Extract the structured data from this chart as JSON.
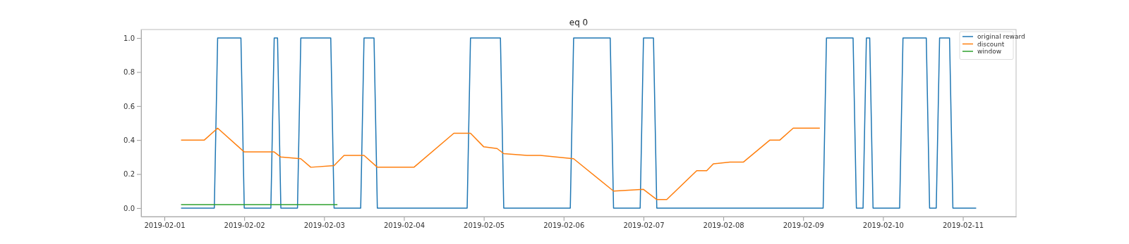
{
  "chart_data": {
    "type": "line",
    "title": "eq 0",
    "legend": "top right",
    "grid": false,
    "xlim": [
      "2019-01-31T17:00",
      "2019-02-11T16:00"
    ],
    "xticks": [
      "2019-02-01",
      "2019-02-02",
      "2019-02-03",
      "2019-02-04",
      "2019-02-05",
      "2019-02-06",
      "2019-02-07",
      "2019-02-08",
      "2019-02-09",
      "2019-02-10",
      "2019-02-11"
    ],
    "ylim": [
      -0.05,
      1.05
    ],
    "yticks": [
      {
        "value": 0,
        "label": "0.0"
      },
      {
        "value": 0.2,
        "label": "0.2"
      },
      {
        "value": 0.4,
        "label": "0.4"
      },
      {
        "value": 0.6,
        "label": "0.6"
      },
      {
        "value": 0.8,
        "label": "0.8"
      },
      {
        "value": 1,
        "label": "1.0"
      }
    ],
    "series": [
      {
        "name": "original reward",
        "color": "#1f77b4",
        "x": [
          "2019-02-01T05:00",
          "2019-02-01T15:00",
          "2019-02-01T16:00",
          "2019-02-01T23:00",
          "2019-02-02T00:00",
          "2019-02-02T08:00",
          "2019-02-02T09:00",
          "2019-02-02T10:00",
          "2019-02-02T11:00",
          "2019-02-02T16:00",
          "2019-02-02T17:00",
          "2019-02-03T02:00",
          "2019-02-03T03:00",
          "2019-02-03T11:00",
          "2019-02-03T12:00",
          "2019-02-03T15:00",
          "2019-02-03T16:00",
          "2019-02-04T19:00",
          "2019-02-04T20:00",
          "2019-02-05T05:00",
          "2019-02-05T06:00",
          "2019-02-06T02:00",
          "2019-02-06T03:00",
          "2019-02-06T14:00",
          "2019-02-06T15:00",
          "2019-02-06T23:00",
          "2019-02-07T00:00",
          "2019-02-07T03:00",
          "2019-02-07T04:00",
          "2019-02-09T06:00",
          "2019-02-09T07:00",
          "2019-02-09T15:00",
          "2019-02-09T16:00",
          "2019-02-09T18:00",
          "2019-02-09T19:00",
          "2019-02-09T20:00",
          "2019-02-09T21:00",
          "2019-02-10T05:00",
          "2019-02-10T06:00",
          "2019-02-10T13:00",
          "2019-02-10T14:00",
          "2019-02-10T16:00",
          "2019-02-10T17:00",
          "2019-02-10T20:00",
          "2019-02-10T21:00",
          "2019-02-11T04:00"
        ],
        "values": [
          0,
          0,
          1,
          1,
          0,
          0,
          1,
          1,
          0,
          0,
          1,
          1,
          0,
          0,
          1,
          1,
          0,
          0,
          1,
          1,
          0,
          0,
          1,
          1,
          0,
          0,
          1,
          1,
          0,
          0,
          1,
          1,
          0,
          0,
          1,
          1,
          0,
          0,
          1,
          1,
          0,
          0,
          1,
          1,
          0,
          0
        ]
      },
      {
        "name": "discount",
        "color": "#ff7f0e",
        "x": [
          "2019-02-01T05:00",
          "2019-02-01T12:00",
          "2019-02-01T16:00",
          "2019-02-02T00:00",
          "2019-02-02T09:00",
          "2019-02-02T11:00",
          "2019-02-02T17:00",
          "2019-02-02T20:00",
          "2019-02-03T03:00",
          "2019-02-03T06:00",
          "2019-02-03T12:00",
          "2019-02-03T16:00",
          "2019-02-04T00:00",
          "2019-02-04T03:00",
          "2019-02-04T15:00",
          "2019-02-04T20:00",
          "2019-02-05T00:00",
          "2019-02-05T04:00",
          "2019-02-05T06:00",
          "2019-02-05T13:00",
          "2019-02-05T17:00",
          "2019-02-06T03:00",
          "2019-02-06T15:00",
          "2019-02-07T00:00",
          "2019-02-07T04:00",
          "2019-02-07T07:00",
          "2019-02-07T16:00",
          "2019-02-07T19:00",
          "2019-02-07T21:00",
          "2019-02-08T02:00",
          "2019-02-08T06:00",
          "2019-02-08T14:00",
          "2019-02-08T17:00",
          "2019-02-08T21:00",
          "2019-02-09T02:00",
          "2019-02-09T05:00"
        ],
        "values": [
          0.4,
          0.4,
          0.47,
          0.33,
          0.33,
          0.3,
          0.29,
          0.24,
          0.25,
          0.31,
          0.31,
          0.24,
          0.24,
          0.24,
          0.44,
          0.44,
          0.36,
          0.35,
          0.32,
          0.31,
          0.31,
          0.29,
          0.1,
          0.11,
          0.05,
          0.05,
          0.22,
          0.22,
          0.26,
          0.27,
          0.27,
          0.4,
          0.4,
          0.47,
          0.47,
          0.47
        ]
      },
      {
        "name": "window",
        "color": "#2ca02c",
        "x": [
          "2019-02-01T05:00",
          "2019-02-03T04:00"
        ],
        "values": [
          0.02,
          0.02
        ]
      }
    ]
  }
}
